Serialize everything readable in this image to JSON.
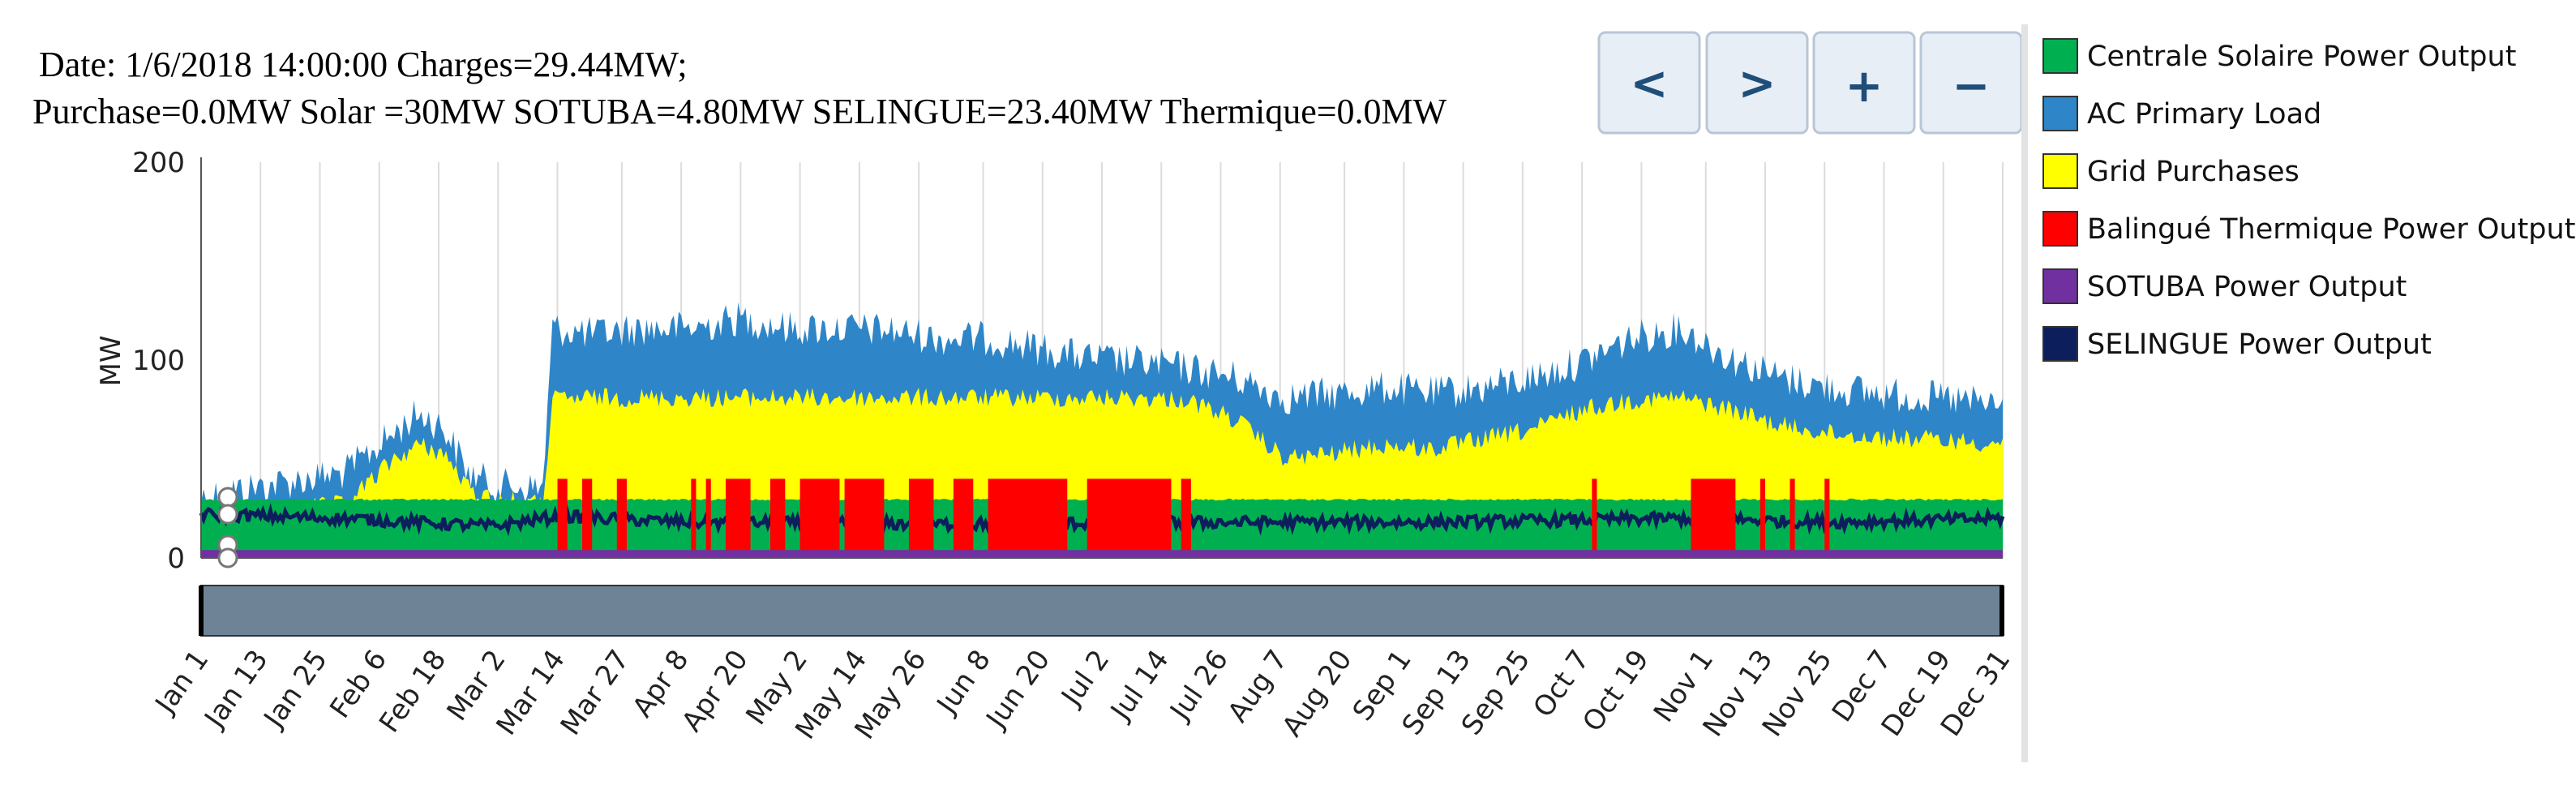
{
  "info": {
    "line1": "Date: 1/6/2018 14:00:00    Charges=29.44MW;",
    "line2": "Purchase=0.0MW Solar =30MW SOTUBA=4.80MW SELINGUE=23.40MW Thermique=0.0MW"
  },
  "nav": {
    "prev": "<",
    "next": ">",
    "zoom_in": "+",
    "zoom_out": "−"
  },
  "colors": {
    "solar": "#00b050",
    "load": "#2e86c8",
    "grid": "#ffff00",
    "thermique": "#ff0000",
    "sotuba": "#7030a0",
    "selingue": "#0c1f5c",
    "scrollbar": "#6e8496"
  },
  "chart_data": {
    "type": "area",
    "title": "",
    "xlabel": "",
    "ylabel": "MW",
    "ylim": [
      0,
      200
    ],
    "yticks": [
      0,
      100,
      200
    ],
    "xlim": [
      1,
      365
    ],
    "x_tick_labels": [
      "Jan 1",
      "Jan 13",
      "Jan 25",
      "Feb 6",
      "Feb 18",
      "Mar 2",
      "Mar 14",
      "Mar 27",
      "Apr 8",
      "Apr 20",
      "May 2",
      "May 14",
      "May 26",
      "Jun 8",
      "Jun 20",
      "Jul 2",
      "Jul 14",
      "Jul 26",
      "Aug 7",
      "Aug 20",
      "Sep 1",
      "Sep 13",
      "Sep 25",
      "Oct 7",
      "Oct 19",
      "Nov 1",
      "Nov 13",
      "Nov 25",
      "Dec 7",
      "Dec 19",
      "Dec 31"
    ],
    "x_tick_days": [
      1,
      13,
      25,
      37,
      49,
      61,
      73,
      86,
      98,
      110,
      122,
      134,
      146,
      159,
      171,
      183,
      195,
      207,
      219,
      232,
      244,
      256,
      268,
      280,
      292,
      305,
      317,
      329,
      341,
      353,
      365
    ],
    "legend": [
      {
        "key": "solar",
        "label": "Centrale Solaire Power Output"
      },
      {
        "key": "load",
        "label": "AC Primary Load"
      },
      {
        "key": "grid",
        "label": "Grid Purchases"
      },
      {
        "key": "thermique",
        "label": "Balingué Thermique Power Output"
      },
      {
        "key": "sotuba",
        "label": "SOTUBA Power Output"
      },
      {
        "key": "selingue",
        "label": "SELINGUE Power Output"
      }
    ],
    "series": [
      {
        "name": "AC Primary Load",
        "key": "load",
        "days": [
          1,
          10,
          20,
          30,
          40,
          45,
          50,
          55,
          60,
          70,
          72,
          80,
          90,
          100,
          110,
          120,
          130,
          140,
          150,
          160,
          170,
          180,
          190,
          200,
          210,
          220,
          230,
          240,
          250,
          260,
          270,
          280,
          290,
          300,
          310,
          320,
          330,
          340,
          350,
          365
        ],
        "values": [
          40,
          44,
          48,
          52,
          72,
          82,
          75,
          52,
          46,
          44,
          125,
          122,
          125,
          125,
          130,
          125,
          125,
          124,
          120,
          120,
          115,
          110,
          108,
          105,
          100,
          90,
          92,
          95,
          92,
          95,
          100,
          108,
          120,
          125,
          110,
          100,
          95,
          92,
          90,
          86
        ]
      },
      {
        "name": "Grid Purchases",
        "key": "grid",
        "days": [
          1,
          10,
          20,
          30,
          40,
          45,
          50,
          55,
          60,
          70,
          72,
          80,
          90,
          100,
          110,
          120,
          130,
          140,
          150,
          160,
          170,
          180,
          190,
          200,
          210,
          220,
          230,
          240,
          250,
          260,
          270,
          280,
          290,
          300,
          310,
          320,
          330,
          340,
          350,
          365
        ],
        "values": [
          30,
          30,
          30,
          32,
          55,
          62,
          58,
          40,
          35,
          32,
          85,
          86,
          86,
          86,
          86,
          86,
          86,
          86,
          86,
          86,
          86,
          86,
          86,
          85,
          75,
          55,
          58,
          62,
          60,
          65,
          70,
          80,
          85,
          86,
          80,
          72,
          68,
          66,
          65,
          63
        ]
      },
      {
        "name": "Centrale Solaire Power Output",
        "key": "solar",
        "days": [
          1,
          365
        ],
        "values": [
          30,
          30
        ]
      },
      {
        "name": "SELINGUE Power Output",
        "key": "selingue",
        "days": [
          1,
          30,
          60,
          73,
          100,
          150,
          200,
          250,
          300,
          330,
          365
        ],
        "values": [
          22,
          20,
          16,
          21,
          18,
          17,
          18,
          18,
          20,
          18,
          20
        ]
      },
      {
        "name": "SOTUBA Power Output",
        "key": "sotuba",
        "days": [
          1,
          365
        ],
        "values": [
          4,
          4
        ]
      },
      {
        "name": "Balingué Thermique Power Output",
        "key": "thermique",
        "value_when_on": 40,
        "on_intervals": [
          [
            73,
            75
          ],
          [
            78,
            80
          ],
          [
            85,
            87
          ],
          [
            100,
            101
          ],
          [
            103,
            104
          ],
          [
            107,
            112
          ],
          [
            116,
            119
          ],
          [
            122,
            130
          ],
          [
            131,
            139
          ],
          [
            144,
            149
          ],
          [
            153,
            157
          ],
          [
            160,
            176
          ],
          [
            180,
            197
          ],
          [
            199,
            201
          ],
          [
            282,
            283
          ],
          [
            302,
            311
          ],
          [
            316,
            317
          ],
          [
            322,
            323
          ],
          [
            329,
            330
          ]
        ]
      }
    ]
  }
}
